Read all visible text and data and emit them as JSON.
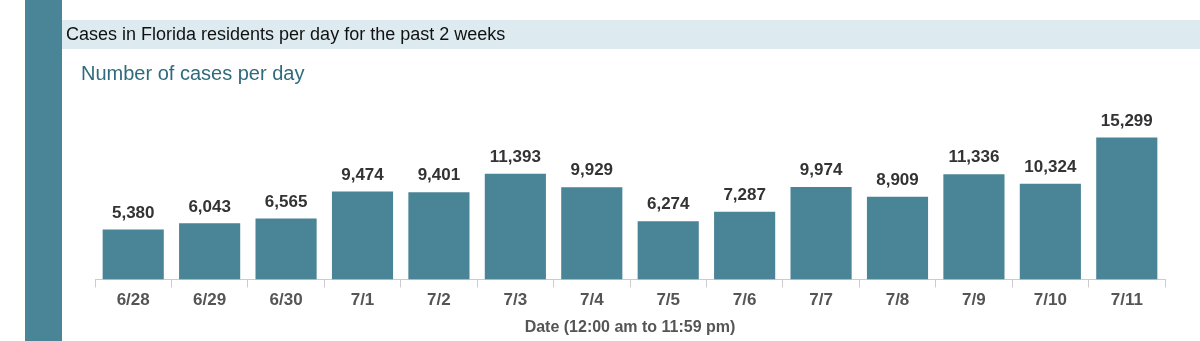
{
  "chart_data": {
    "type": "bar",
    "title": "Cases in Florida residents per day for the past 2 weeks",
    "subtitle": "Number of cases per day",
    "xlabel": "Date (12:00 am to 11:59 pm)",
    "categories": [
      "6/28",
      "6/29",
      "6/30",
      "7/1",
      "7/2",
      "7/3",
      "7/4",
      "7/5",
      "7/6",
      "7/7",
      "7/8",
      "7/9",
      "7/10",
      "7/11"
    ],
    "values": [
      5380,
      6043,
      6565,
      9474,
      9401,
      11393,
      9929,
      6274,
      7287,
      9974,
      8909,
      11336,
      10324,
      15299
    ],
    "value_labels": [
      "5,380",
      "6,043",
      "6,565",
      "9,474",
      "9,401",
      "11,393",
      "9,929",
      "6,274",
      "7,287",
      "9,974",
      "8,909",
      "11,336",
      "10,324",
      "15,299"
    ],
    "color": "#4a8497",
    "tick_labels": "x",
    "grid": false,
    "legend": false
  }
}
